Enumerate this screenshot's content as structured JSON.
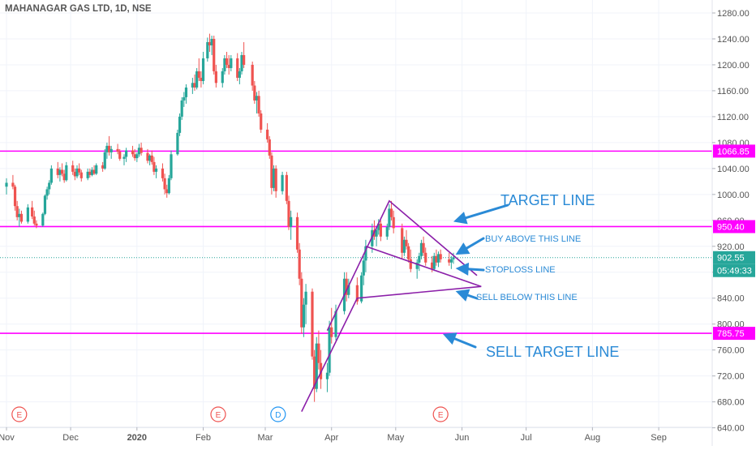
{
  "chart_data": {
    "type": "candlestick",
    "title": "MAHANAGAR GAS LTD, 1D, NSE",
    "colors": {
      "up": "#26a69a",
      "down": "#ef5350",
      "level_line": "#ff00ff",
      "pattern_line": "#8b1fa9",
      "annotation": "#2a8ad6",
      "last_price": "#26a69a",
      "grid": "#f0f3fa",
      "axis_text": "#555555",
      "dotted_price": "#26a69a"
    },
    "x_axis": {
      "labels": [
        "Nov",
        "Dec",
        "2020",
        "Feb",
        "Mar",
        "Apr",
        "May",
        "Jun",
        "Jul",
        "Aug",
        "Sep"
      ],
      "start_date": "2019-11-01",
      "end_date": "2020-09-26"
    },
    "y_axis": {
      "ticks": [
        "1280.00",
        "1240.00",
        "1200.00",
        "1160.00",
        "1120.00",
        "1080.00",
        "1040.00",
        "1000.00",
        "960.00",
        "920.00",
        "880.00",
        "840.00",
        "800.00",
        "760.00",
        "720.00",
        "680.00",
        "640.00"
      ],
      "range": [
        612,
        1300
      ],
      "grid": true
    },
    "levels": [
      {
        "value": 1066.85,
        "label": "1066.85",
        "style": "solid"
      },
      {
        "value": 950.4,
        "label": "950.40",
        "style": "solid"
      },
      {
        "value": 785.75,
        "label": "785.75",
        "style": "solid"
      }
    ],
    "last_price": {
      "value": 902.55,
      "label": "902.55",
      "countdown": "05:49:33"
    },
    "events": [
      {
        "date": "2019-11-07",
        "letter": "E",
        "kind": "earnings"
      },
      {
        "date": "2020-02-08",
        "letter": "E",
        "kind": "earnings"
      },
      {
        "date": "2020-03-07",
        "letter": "D",
        "kind": "dividend"
      },
      {
        "date": "2020-05-22",
        "letter": "E",
        "kind": "earnings"
      }
    ],
    "pattern_lines": [
      {
        "points": [
          [
            "2020-03-18",
            665
          ],
          [
            "2020-04-13",
            840
          ],
          [
            "2020-06-10",
            858
          ]
        ]
      },
      {
        "points": [
          [
            "2020-03-30",
            790
          ],
          [
            "2020-04-28",
            990
          ],
          [
            "2020-06-08",
            875
          ]
        ]
      },
      {
        "points": [
          [
            "2020-04-17",
            920
          ],
          [
            "2020-06-10",
            858
          ]
        ]
      }
    ],
    "annotations": [
      {
        "text": "TARGET LINE",
        "arrow_to": [
          "2020-05-28",
          958
        ],
        "size": "large"
      },
      {
        "text": "BUY ABOVE THIS LINE",
        "arrow_to": [
          "2020-05-29",
          907
        ],
        "size": "small"
      },
      {
        "text": "STOPLOSS LINE",
        "arrow_to": [
          "2020-05-29",
          886
        ],
        "size": "small"
      },
      {
        "text": "SELL BELOW THIS LINE",
        "arrow_to": [
          "2020-05-29",
          851
        ],
        "size": "small"
      },
      {
        "text": "SELL TARGET LINE",
        "arrow_to": [
          "2020-05-23",
          785
        ],
        "size": "large"
      }
    ],
    "candles": [
      [
        "2019-11-01",
        1012,
        1025,
        1000,
        1018
      ],
      [
        "2019-11-04",
        1018,
        1030,
        1008,
        1012
      ],
      [
        "2019-11-05",
        1012,
        1015,
        975,
        982
      ],
      [
        "2019-11-06",
        982,
        990,
        960,
        965
      ],
      [
        "2019-11-07",
        965,
        978,
        950,
        970
      ],
      [
        "2019-11-08",
        970,
        975,
        955,
        958
      ],
      [
        "2019-11-11",
        958,
        985,
        955,
        980
      ],
      [
        "2019-11-13",
        980,
        990,
        962,
        966
      ],
      [
        "2019-11-14",
        966,
        975,
        952,
        955
      ],
      [
        "2019-11-15",
        955,
        960,
        948,
        952
      ],
      [
        "2019-11-18",
        952,
        972,
        950,
        970
      ],
      [
        "2019-11-19",
        970,
        1000,
        968,
        998
      ],
      [
        "2019-11-20",
        998,
        1012,
        992,
        1008
      ],
      [
        "2019-11-21",
        1008,
        1022,
        1000,
        1018
      ],
      [
        "2019-11-22",
        1018,
        1045,
        1015,
        1040
      ],
      [
        "2019-11-25",
        1040,
        1050,
        1025,
        1030
      ],
      [
        "2019-11-26",
        1030,
        1042,
        1020,
        1038
      ],
      [
        "2019-11-27",
        1038,
        1048,
        1028,
        1032
      ],
      [
        "2019-11-28",
        1032,
        1038,
        1018,
        1022
      ],
      [
        "2019-11-29",
        1022,
        1050,
        1020,
        1045
      ],
      [
        "2019-12-02",
        1045,
        1052,
        1030,
        1035
      ],
      [
        "2019-12-03",
        1035,
        1040,
        1022,
        1028
      ],
      [
        "2019-12-04",
        1028,
        1045,
        1025,
        1040
      ],
      [
        "2019-12-05",
        1040,
        1048,
        1030,
        1034
      ],
      [
        "2019-12-06",
        1034,
        1038,
        1020,
        1025
      ],
      [
        "2019-12-09",
        1025,
        1040,
        1022,
        1035
      ],
      [
        "2019-12-10",
        1035,
        1040,
        1026,
        1030
      ],
      [
        "2019-12-11",
        1030,
        1042,
        1028,
        1038
      ],
      [
        "2019-12-12",
        1038,
        1045,
        1030,
        1032
      ],
      [
        "2019-12-13",
        1032,
        1048,
        1030,
        1045
      ],
      [
        "2019-12-16",
        1045,
        1050,
        1035,
        1040
      ],
      [
        "2019-12-17",
        1040,
        1070,
        1038,
        1065
      ],
      [
        "2019-12-18",
        1065,
        1080,
        1055,
        1075
      ],
      [
        "2019-12-19",
        1075,
        1090,
        1060,
        1065
      ],
      [
        "2019-12-20",
        1065,
        1075,
        1055,
        1070
      ],
      [
        "2019-12-23",
        1070,
        1078,
        1062,
        1066
      ],
      [
        "2019-12-24",
        1066,
        1070,
        1052,
        1055
      ],
      [
        "2019-12-26",
        1055,
        1062,
        1045,
        1058
      ],
      [
        "2019-12-27",
        1058,
        1072,
        1050,
        1068
      ],
      [
        "2019-12-30",
        1068,
        1075,
        1058,
        1062
      ],
      [
        "2019-12-31",
        1062,
        1070,
        1052,
        1056
      ],
      [
        "2020-01-01",
        1056,
        1065,
        1050,
        1062
      ],
      [
        "2020-01-02",
        1062,
        1078,
        1058,
        1072
      ],
      [
        "2020-01-03",
        1072,
        1080,
        1060,
        1064
      ],
      [
        "2020-01-06",
        1064,
        1070,
        1048,
        1052
      ],
      [
        "2020-01-07",
        1052,
        1062,
        1045,
        1060
      ],
      [
        "2020-01-08",
        1060,
        1068,
        1046,
        1050
      ],
      [
        "2020-01-09",
        1050,
        1058,
        1030,
        1035
      ],
      [
        "2020-01-10",
        1035,
        1045,
        1025,
        1040
      ],
      [
        "2020-01-13",
        1040,
        1048,
        1020,
        1025
      ],
      [
        "2020-01-14",
        1025,
        1032,
        1000,
        1008
      ],
      [
        "2020-01-15",
        1008,
        1015,
        995,
        1002
      ],
      [
        "2020-01-16",
        1002,
        1030,
        1000,
        1025
      ],
      [
        "2020-01-17",
        1025,
        1068,
        1022,
        1062
      ],
      [
        "2020-01-20",
        1062,
        1100,
        1060,
        1095
      ],
      [
        "2020-01-21",
        1095,
        1125,
        1090,
        1120
      ],
      [
        "2020-01-22",
        1120,
        1150,
        1115,
        1145
      ],
      [
        "2020-01-23",
        1145,
        1158,
        1135,
        1150
      ],
      [
        "2020-01-24",
        1150,
        1170,
        1140,
        1165
      ],
      [
        "2020-01-27",
        1165,
        1180,
        1155,
        1172
      ],
      [
        "2020-01-28",
        1172,
        1185,
        1160,
        1165
      ],
      [
        "2020-01-29",
        1165,
        1195,
        1162,
        1190
      ],
      [
        "2020-01-30",
        1190,
        1210,
        1175,
        1180
      ],
      [
        "2020-01-31",
        1180,
        1190,
        1165,
        1175
      ],
      [
        "2020-02-01",
        1175,
        1220,
        1170,
        1210
      ],
      [
        "2020-02-03",
        1210,
        1242,
        1205,
        1235
      ],
      [
        "2020-02-04",
        1235,
        1248,
        1220,
        1230
      ],
      [
        "2020-02-05",
        1230,
        1245,
        1215,
        1240
      ],
      [
        "2020-02-06",
        1240,
        1245,
        1185,
        1190
      ],
      [
        "2020-02-07",
        1190,
        1200,
        1165,
        1172
      ],
      [
        "2020-02-10",
        1172,
        1195,
        1165,
        1190
      ],
      [
        "2020-02-11",
        1190,
        1215,
        1185,
        1210
      ],
      [
        "2020-02-12",
        1210,
        1220,
        1195,
        1200
      ],
      [
        "2020-02-13",
        1200,
        1215,
        1185,
        1195
      ],
      [
        "2020-02-14",
        1195,
        1215,
        1190,
        1210
      ],
      [
        "2020-02-17",
        1210,
        1218,
        1175,
        1180
      ],
      [
        "2020-02-18",
        1180,
        1195,
        1170,
        1190
      ],
      [
        "2020-02-19",
        1190,
        1220,
        1185,
        1215
      ],
      [
        "2020-02-20",
        1215,
        1235,
        1195,
        1200
      ],
      [
        "2020-02-24",
        1200,
        1205,
        1160,
        1168
      ],
      [
        "2020-02-25",
        1168,
        1175,
        1140,
        1145
      ],
      [
        "2020-02-26",
        1145,
        1158,
        1125,
        1152
      ],
      [
        "2020-02-27",
        1152,
        1160,
        1120,
        1125
      ],
      [
        "2020-02-28",
        1125,
        1130,
        1095,
        1100
      ],
      [
        "2020-03-02",
        1100,
        1110,
        1080,
        1085
      ],
      [
        "2020-03-03",
        1085,
        1090,
        1055,
        1060
      ],
      [
        "2020-03-04",
        1060,
        1065,
        1000,
        1010
      ],
      [
        "2020-03-05",
        1010,
        1045,
        1005,
        1040
      ],
      [
        "2020-03-06",
        1040,
        1045,
        995,
        1005
      ],
      [
        "2020-03-09",
        1005,
        1035,
        1000,
        1030
      ],
      [
        "2020-03-11",
        1030,
        1035,
        985,
        990
      ],
      [
        "2020-03-12",
        990,
        998,
        945,
        950
      ],
      [
        "2020-03-13",
        950,
        975,
        930,
        965
      ],
      [
        "2020-03-16",
        965,
        972,
        910,
        915
      ],
      [
        "2020-03-17",
        915,
        925,
        860,
        870
      ],
      [
        "2020-03-18",
        870,
        880,
        785,
        795
      ],
      [
        "2020-03-19",
        795,
        840,
        780,
        830
      ],
      [
        "2020-03-20",
        830,
        862,
        800,
        850
      ],
      [
        "2020-03-23",
        850,
        855,
        745,
        750
      ],
      [
        "2020-03-24",
        750,
        760,
        680,
        700
      ],
      [
        "2020-03-25",
        700,
        780,
        695,
        770
      ],
      [
        "2020-03-26",
        770,
        790,
        730,
        740
      ],
      [
        "2020-03-27",
        740,
        760,
        700,
        715
      ],
      [
        "2020-03-30",
        715,
        740,
        695,
        725
      ],
      [
        "2020-03-31",
        725,
        805,
        720,
        795
      ],
      [
        "2020-04-01",
        795,
        825,
        770,
        780
      ],
      [
        "2020-04-03",
        780,
        830,
        775,
        820
      ],
      [
        "2020-04-07",
        820,
        880,
        815,
        870
      ],
      [
        "2020-04-08",
        870,
        880,
        835,
        845
      ],
      [
        "2020-04-09",
        845,
        870,
        840,
        860
      ],
      [
        "2020-04-13",
        860,
        872,
        830,
        835
      ],
      [
        "2020-04-15",
        835,
        880,
        832,
        875
      ],
      [
        "2020-04-16",
        875,
        905,
        860,
        898
      ],
      [
        "2020-04-17",
        898,
        930,
        880,
        920
      ],
      [
        "2020-04-20",
        920,
        955,
        910,
        945
      ],
      [
        "2020-04-21",
        945,
        960,
        930,
        935
      ],
      [
        "2020-04-22",
        935,
        950,
        920,
        945
      ],
      [
        "2020-04-23",
        945,
        962,
        938,
        955
      ],
      [
        "2020-04-24",
        955,
        960,
        928,
        935
      ],
      [
        "2020-04-27",
        935,
        955,
        930,
        950
      ],
      [
        "2020-04-28",
        950,
        985,
        945,
        978
      ],
      [
        "2020-04-29",
        978,
        990,
        960,
        965
      ],
      [
        "2020-04-30",
        965,
        975,
        940,
        948
      ],
      [
        "2020-05-04",
        948,
        955,
        900,
        910
      ],
      [
        "2020-05-05",
        910,
        935,
        905,
        930
      ],
      [
        "2020-05-06",
        930,
        945,
        915,
        920
      ],
      [
        "2020-05-07",
        920,
        925,
        895,
        900
      ],
      [
        "2020-05-08",
        900,
        915,
        880,
        885
      ],
      [
        "2020-05-11",
        885,
        900,
        870,
        895
      ],
      [
        "2020-05-12",
        895,
        910,
        882,
        905
      ],
      [
        "2020-05-13",
        905,
        930,
        900,
        925
      ],
      [
        "2020-05-14",
        925,
        935,
        905,
        910
      ],
      [
        "2020-05-15",
        910,
        918,
        890,
        895
      ],
      [
        "2020-05-18",
        895,
        905,
        880,
        885
      ],
      [
        "2020-05-19",
        885,
        910,
        882,
        905
      ],
      [
        "2020-05-20",
        905,
        915,
        890,
        895
      ],
      [
        "2020-05-21",
        895,
        912,
        888,
        908
      ],
      [
        "2020-05-22",
        908,
        915,
        895,
        900
      ],
      [
        "2020-05-26",
        900,
        910,
        890,
        895
      ],
      [
        "2020-05-27",
        895,
        905,
        885,
        900
      ],
      [
        "2020-05-28",
        900,
        910,
        893,
        903
      ]
    ]
  }
}
